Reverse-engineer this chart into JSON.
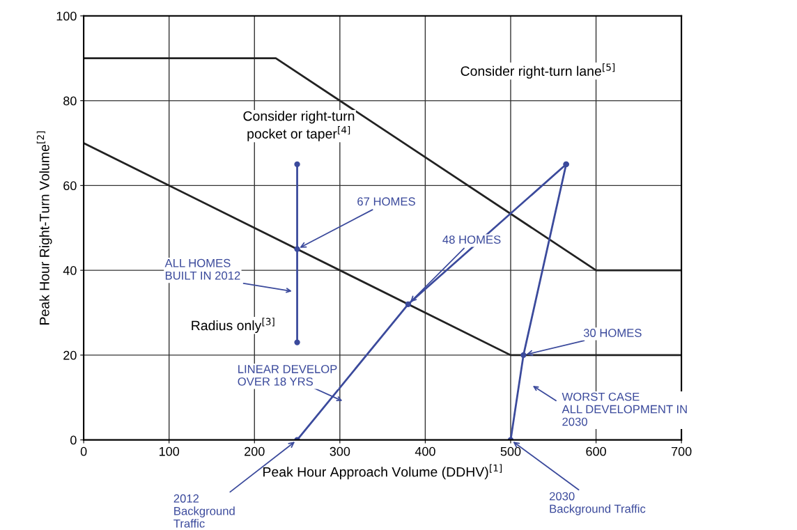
{
  "chart_data": {
    "type": "line",
    "xlabel": "Peak Hour Approach Volume (DDHV)$^{[1]}$",
    "ylabel": "Peak Hour Right-Turn Volume$^{[2]}$",
    "xlim": [
      0,
      700
    ],
    "xticks": [
      0,
      100,
      200,
      300,
      400,
      500,
      600,
      700
    ],
    "ylim": [
      0,
      100
    ],
    "yticks": [
      0,
      20,
      40,
      60,
      80,
      100
    ],
    "grid": true,
    "series": [
      {
        "x": [
          0,
          225,
          600,
          700
        ],
        "values": [
          90,
          90,
          40,
          40
        ],
        "color": "#222222",
        "marker": "none"
      },
      {
        "x": [
          0,
          500,
          700
        ],
        "values": [
          70,
          20,
          20
        ],
        "color": "#222222",
        "marker": "none"
      },
      {
        "x": [
          250,
          250,
          250
        ],
        "values": [
          23,
          45,
          65
        ],
        "color": "#3b4a9c",
        "marker": "circle"
      },
      {
        "x": [
          250,
          380,
          565
        ],
        "values": [
          0,
          32,
          65
        ],
        "color": "#3b4a9c",
        "marker": "circle"
      },
      {
        "x": [
          500,
          515,
          565
        ],
        "values": [
          0,
          20,
          65
        ],
        "color": "#3b4a9c",
        "marker": "circle"
      }
    ],
    "annotations": [
      "Consider right-turn lane$^{[5]}$",
      "Consider right-turn\npocket or taper$^{[4]}$",
      "Radius only$^{[3]}$",
      {
        "text": "67 HOMES",
        "x": 250,
        "y": 45
      },
      {
        "text": "48 HOMES",
        "x": 380,
        "y": 32
      },
      "ALL HOMES\nBUILT IN 2012",
      "LINEAR DEVELOP\nOVER 18 YRS",
      {
        "text": "30 HOMES",
        "x": 515,
        "y": 20
      },
      "WORST CASE\nALL DEVELOPMENT IN\n2030",
      {
        "text": "2012\nBackground\nTraffic",
        "x": 250,
        "y": 0
      },
      {
        "text": "2030\nBackground Traffic",
        "x": 500,
        "y": 0
      }
    ]
  }
}
